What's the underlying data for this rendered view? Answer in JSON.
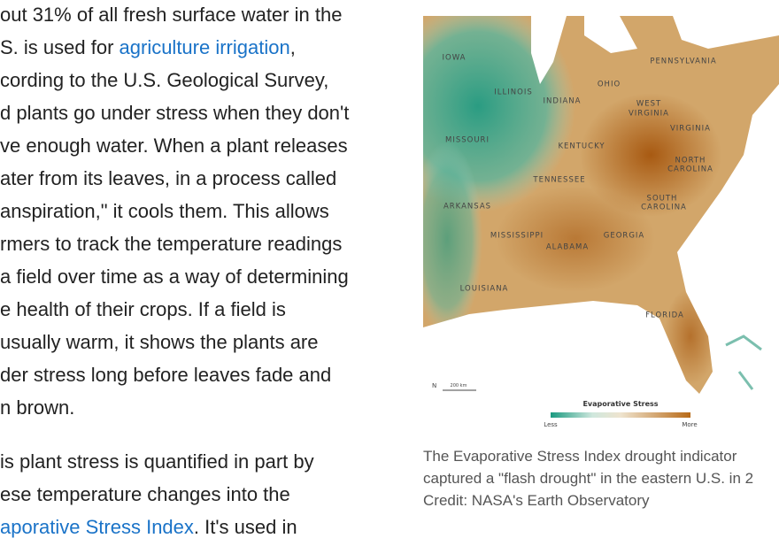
{
  "article": {
    "paragraphs": [
      {
        "lines": [
          {
            "before": "out 31% of all fresh surface water in the"
          },
          {
            "before": "S. is used for ",
            "link": "agriculture irrigation",
            "after": ","
          },
          {
            "before": "cording to the U.S. Geological Survey,"
          },
          {
            "before": "d plants go under stress when they don't"
          },
          {
            "before": "ve enough water. When a plant releases"
          },
          {
            "before": "ater from its leaves, in a process called"
          },
          {
            "before": "anspiration,\" it cools them. This allows"
          },
          {
            "before": "rmers to track the temperature readings"
          },
          {
            "before": "a field over time as a way of determining"
          },
          {
            "before": "e health of their crops. If a field is"
          },
          {
            "before": "usually warm, it shows the plants are"
          },
          {
            "before": "der stress long before leaves fade and"
          },
          {
            "before": "n brown."
          }
        ]
      },
      {
        "lines": [
          {
            "before": "is plant stress is quantified in part by"
          },
          {
            "before": "ese temperature changes into the"
          },
          {
            "link": "aporative Stress Index",
            "after": ". It's used in"
          }
        ]
      }
    ]
  },
  "figure": {
    "map_labels": [
      "IOWA",
      "ILLINOIS",
      "OHIO",
      "PENNSYLVANIA",
      "INDIANA",
      "WEST",
      "VIRGINIA",
      "VIRGINIA",
      "MISSOURI",
      "KENTUCKY",
      "NORTH",
      "CAROLINA",
      "TENNESSEE",
      "SOUTH",
      "CAROLINA",
      "ARKANSAS",
      "MISSISSIPPI",
      "ALABAMA",
      "GEORGIA",
      "LOUISIANA",
      "FLORIDA"
    ],
    "scale": "200 km",
    "legend": {
      "title": "Evaporative Stress",
      "less": "Less",
      "more": "More"
    },
    "caption": [
      "The Evaporative Stress Index drought indicator",
      "captured a \"flash drought\" in the eastern U.S. in 2",
      "Credit: NASA's Earth Observatory"
    ]
  }
}
